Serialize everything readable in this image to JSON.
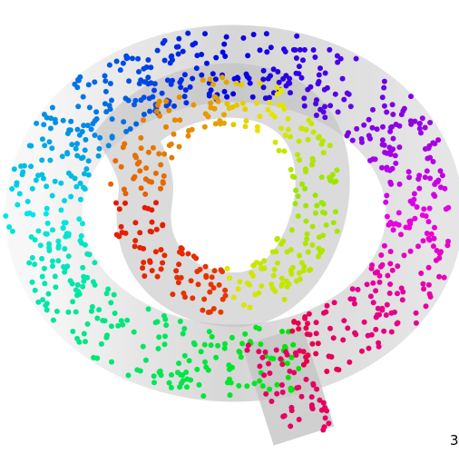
{
  "label": "3"
}
